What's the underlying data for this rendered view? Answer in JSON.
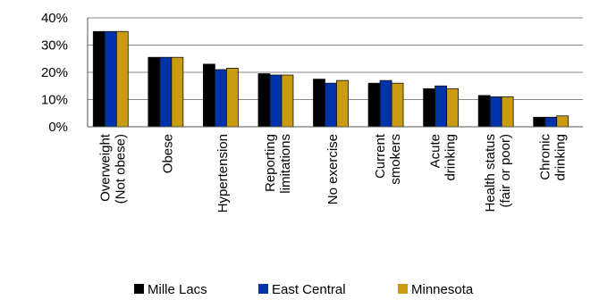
{
  "chart_data": {
    "type": "bar",
    "categories": [
      [
        "Overweight",
        "(Not obese)"
      ],
      [
        "Obese"
      ],
      [
        "Hypertension"
      ],
      [
        "Reporting",
        "limitations"
      ],
      [
        "No exercise"
      ],
      [
        "Current",
        "smokers"
      ],
      [
        "Acute",
        "drinking"
      ],
      [
        "Health status",
        "(fair or poor)"
      ],
      [
        "Chronic",
        "drinking"
      ]
    ],
    "series": [
      {
        "name": "Mille Lacs",
        "color": "#000000",
        "values": [
          35,
          25.5,
          23,
          19.5,
          17.5,
          16,
          14,
          11.5,
          3.5
        ]
      },
      {
        "name": "East Central",
        "color": "#0033aa",
        "values": [
          35,
          25.5,
          21,
          19,
          16,
          17,
          15,
          11,
          3.5
        ]
      },
      {
        "name": "Minnesota",
        "color": "#c89b10",
        "values": [
          35,
          25.5,
          21.5,
          19,
          17,
          16,
          14,
          11,
          4
        ]
      }
    ],
    "y_ticks": [
      "0%",
      "10%",
      "20%",
      "30%",
      "40%"
    ],
    "ylim": [
      0,
      40
    ],
    "grid": true,
    "legend_position": "bottom"
  }
}
